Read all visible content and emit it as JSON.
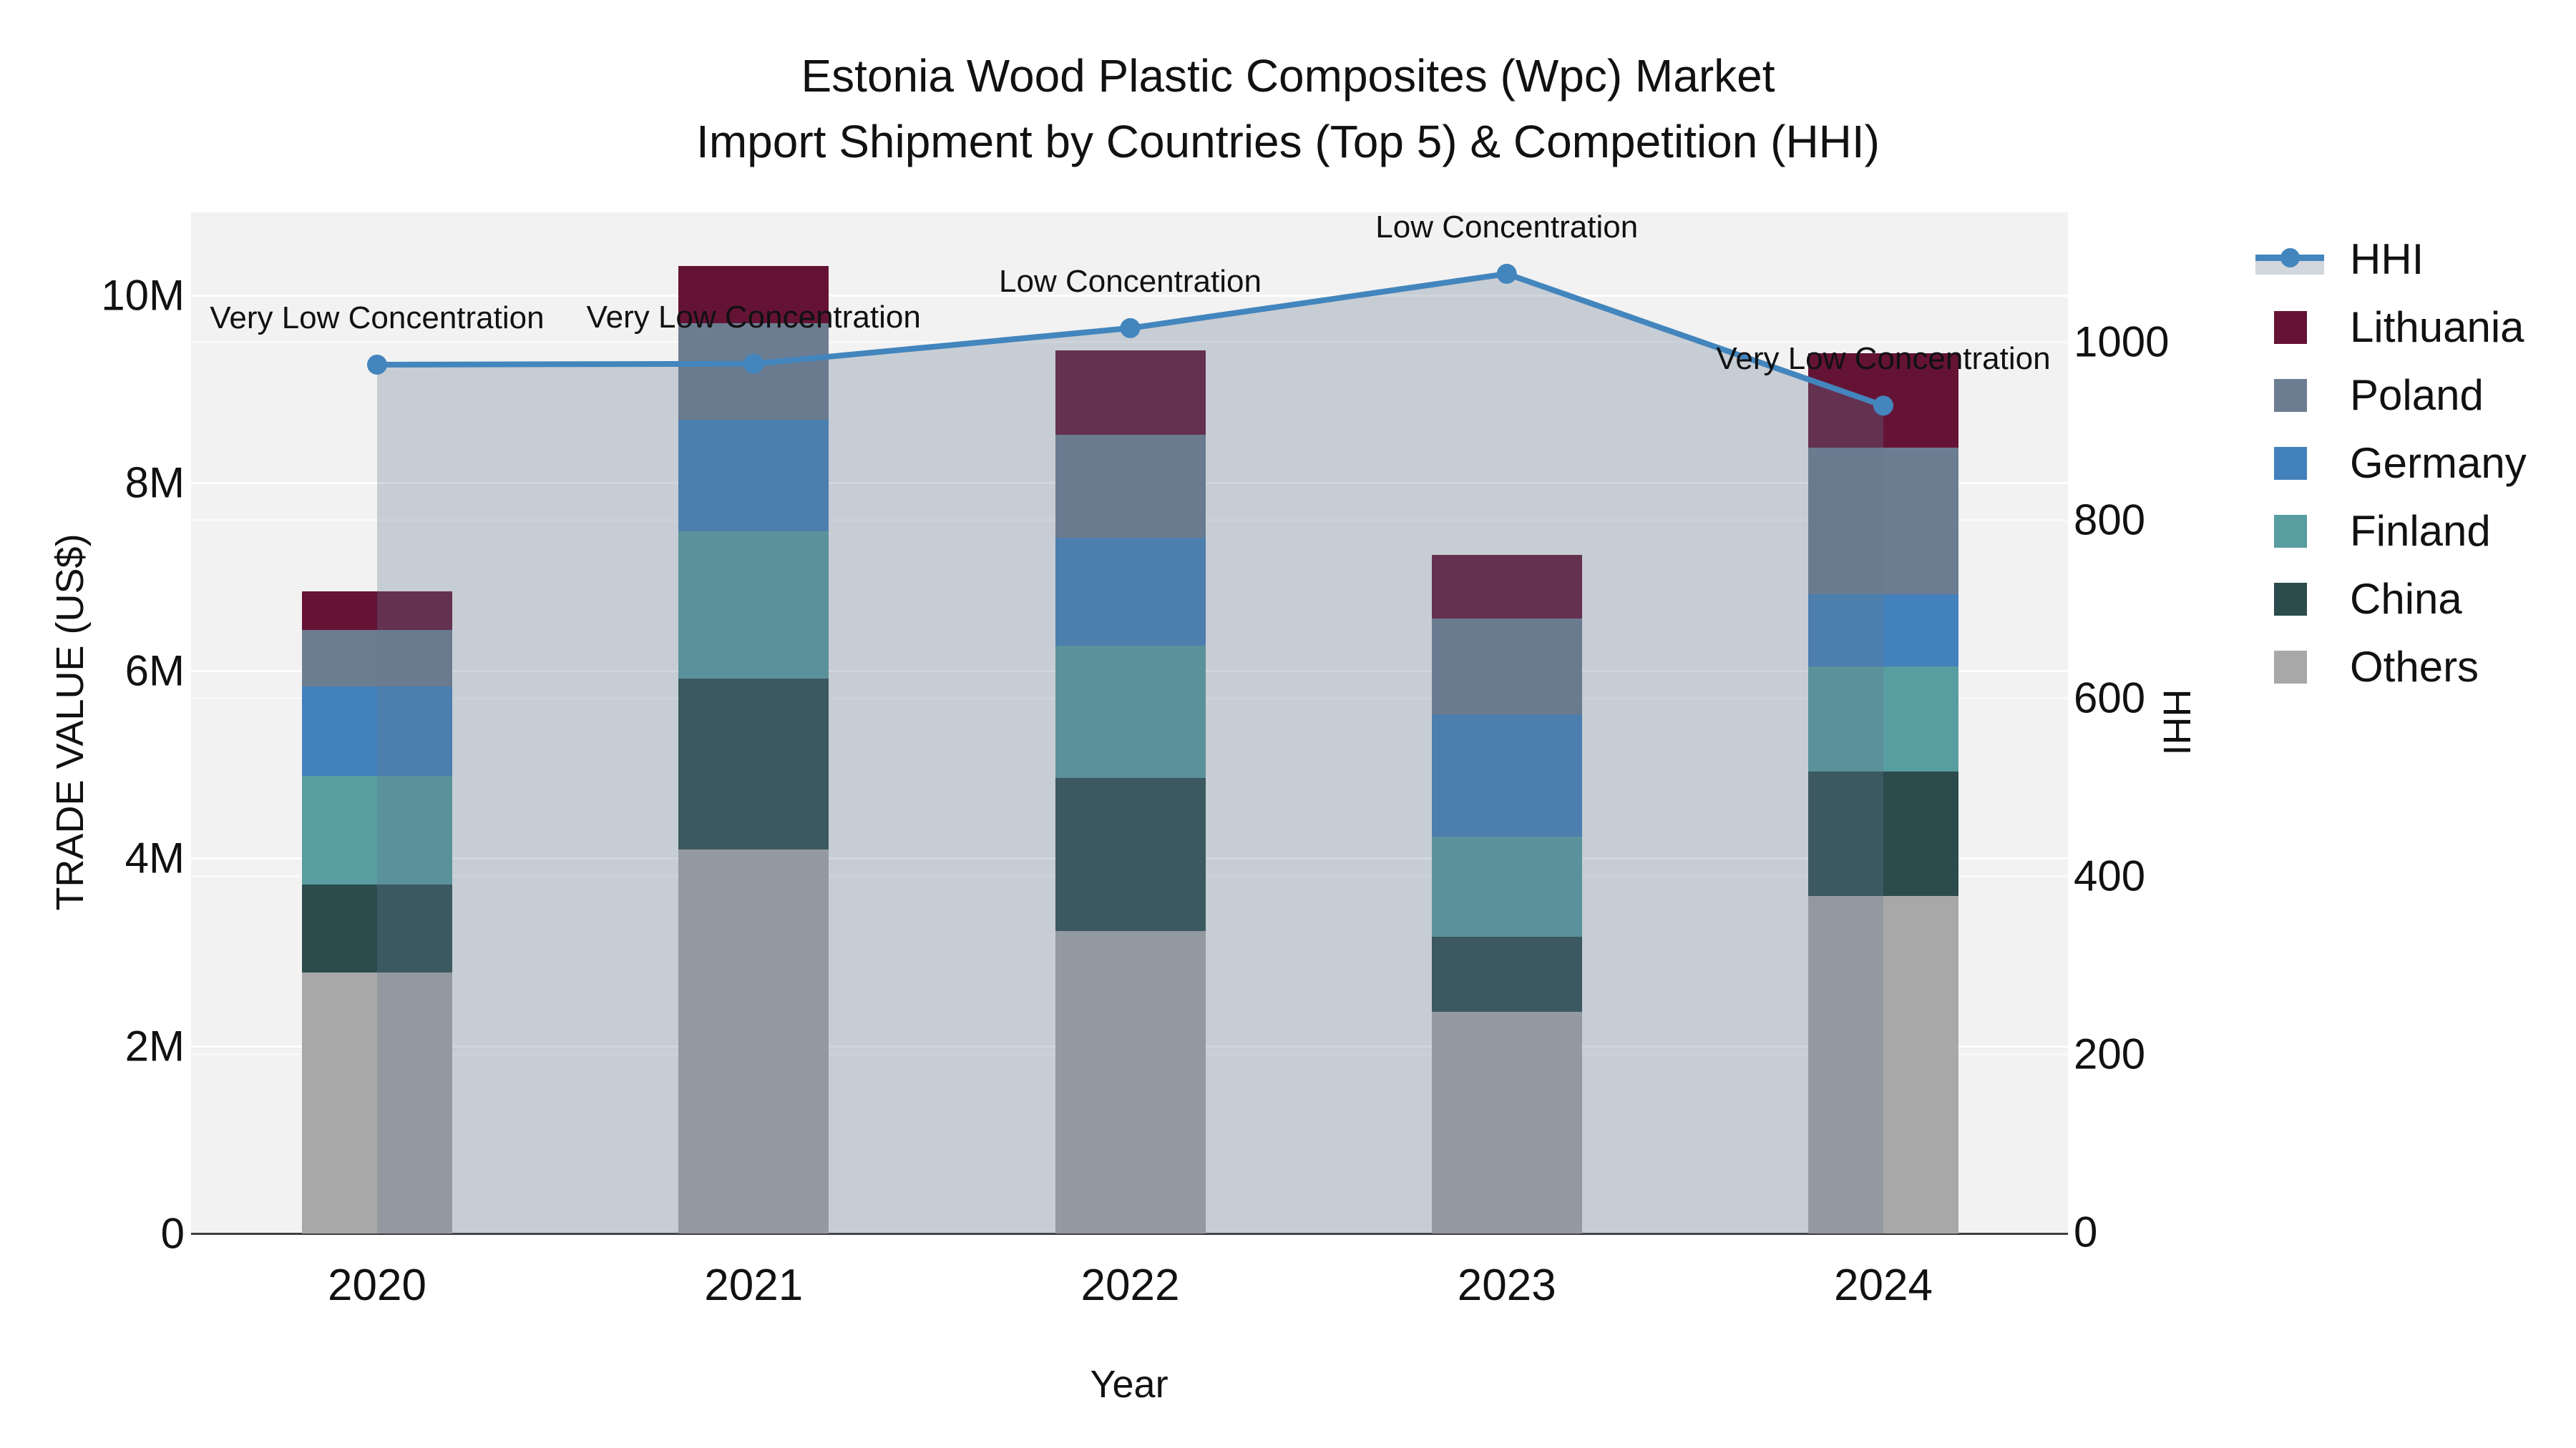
{
  "title": {
    "line1": "Estonia Wood Plastic Composites (Wpc) Market",
    "line2": "Import Shipment by Countries (Top 5) & Competition (HHI)"
  },
  "axes": {
    "x": {
      "title": "Year",
      "ticks": [
        "2020",
        "2021",
        "2022",
        "2023",
        "2024"
      ]
    },
    "y_left": {
      "title": "TRADE VALUE (US$)",
      "ticks": [
        {
          "label": "0",
          "value": 0
        },
        {
          "label": "2M",
          "value": 2
        },
        {
          "label": "4M",
          "value": 4
        },
        {
          "label": "6M",
          "value": 6
        },
        {
          "label": "8M",
          "value": 8
        },
        {
          "label": "10M",
          "value": 10
        }
      ]
    },
    "y_right": {
      "title": "HHI",
      "ticks": [
        {
          "label": "0",
          "value": 0
        },
        {
          "label": "200",
          "value": 200
        },
        {
          "label": "400",
          "value": 400
        },
        {
          "label": "600",
          "value": 600
        },
        {
          "label": "800",
          "value": 800
        },
        {
          "label": "1000",
          "value": 1000
        }
      ]
    }
  },
  "legend": {
    "items": [
      {
        "label": "HHI",
        "type": "line",
        "color": "#4385bd",
        "band_color": "#d2d7dd"
      },
      {
        "label": "Lithuania",
        "type": "square",
        "color": "#651335"
      },
      {
        "label": "Poland",
        "type": "square",
        "color": "#6d7d91"
      },
      {
        "label": "Germany",
        "type": "square",
        "color": "#4381bc"
      },
      {
        "label": "Finland",
        "type": "square",
        "color": "#589da0"
      },
      {
        "label": "China",
        "type": "square",
        "color": "#2b4b4c"
      },
      {
        "label": "Others",
        "type": "square",
        "color": "#a8a8a8"
      }
    ]
  },
  "chart_data": {
    "type": "combo-stacked-bar-line",
    "title": "Estonia Wood Plastic Composites (Wpc) Market — Import Shipment by Countries (Top 5) & Competition (HHI)",
    "categories": [
      "2020",
      "2021",
      "2022",
      "2023",
      "2024"
    ],
    "xlabel": "Year",
    "ylabel_left": "TRADE VALUE (US$)",
    "ylabel_right": "HHI",
    "units_left": "millions of US$",
    "ylim_left": [
      0,
      10.88
    ],
    "ylim_right": [
      0,
      1145
    ],
    "grid": true,
    "legend_position": "right",
    "bar_series_bottom_to_top": [
      {
        "name": "Others",
        "color": "#a8a8a8",
        "values": [
          2.78,
          4.09,
          3.22,
          2.36,
          3.6
        ]
      },
      {
        "name": "China",
        "color": "#2b4b4c",
        "values": [
          0.94,
          1.82,
          1.63,
          0.8,
          1.32
        ]
      },
      {
        "name": "Finland",
        "color": "#589da0",
        "values": [
          1.16,
          1.57,
          1.41,
          1.07,
          1.12
        ]
      },
      {
        "name": "Germany",
        "color": "#4381bc",
        "values": [
          0.95,
          1.19,
          1.15,
          1.3,
          0.77
        ]
      },
      {
        "name": "Poland",
        "color": "#6d7d91",
        "values": [
          0.6,
          1.03,
          1.1,
          1.02,
          1.56
        ]
      },
      {
        "name": "Lithuania",
        "color": "#651335",
        "values": [
          0.41,
          0.61,
          0.9,
          0.68,
          1.01
        ]
      }
    ],
    "bar_totals": [
      6.84,
      10.31,
      9.41,
      7.23,
      9.38
    ],
    "line_series": {
      "name": "HHI",
      "axis": "right",
      "color": "#4385bd",
      "area_fill": "rgba(100,118,142,0.30)",
      "values": [
        974,
        975,
        1015,
        1076,
        928
      ]
    },
    "annotations": [
      {
        "x": "2020",
        "text": "Very Low Concentration"
      },
      {
        "x": "2021",
        "text": "Very Low Concentration"
      },
      {
        "x": "2022",
        "text": "Low Concentration"
      },
      {
        "x": "2023",
        "text": "Low Concentration"
      },
      {
        "x": "2024",
        "text": "Very Low Concentration"
      }
    ],
    "colors": {
      "plot_background": "#f2f2f2",
      "figure_background": "#ffffff",
      "gridline": "#ffffff",
      "axis_line": "#3f3f3f",
      "text": "#111111"
    }
  }
}
